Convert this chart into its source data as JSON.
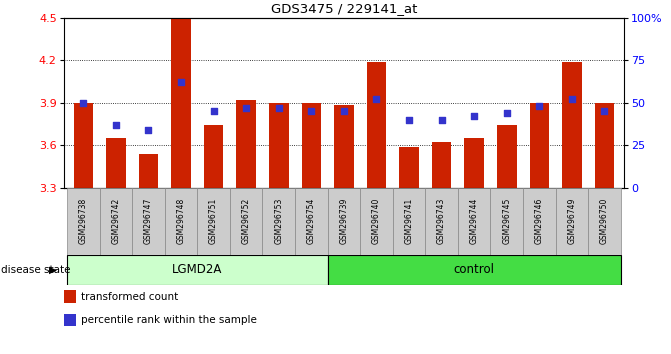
{
  "title": "GDS3475 / 229141_at",
  "samples": [
    "GSM296738",
    "GSM296742",
    "GSM296747",
    "GSM296748",
    "GSM296751",
    "GSM296752",
    "GSM296753",
    "GSM296754",
    "GSM296739",
    "GSM296740",
    "GSM296741",
    "GSM296743",
    "GSM296744",
    "GSM296745",
    "GSM296746",
    "GSM296749",
    "GSM296750"
  ],
  "bar_values": [
    3.9,
    3.65,
    3.54,
    4.49,
    3.74,
    3.92,
    3.9,
    3.9,
    3.88,
    4.19,
    3.59,
    3.62,
    3.65,
    3.74,
    3.9,
    4.19,
    3.9
  ],
  "percentile_pct": [
    50,
    37,
    34,
    62,
    45,
    47,
    47,
    45,
    45,
    52,
    40,
    40,
    42,
    44,
    48,
    52,
    45
  ],
  "y_min": 3.3,
  "y_max": 4.5,
  "y_ticks": [
    3.3,
    3.6,
    3.9,
    4.2,
    4.5
  ],
  "right_y_ticks": [
    0,
    25,
    50,
    75,
    100
  ],
  "bar_color": "#CC2200",
  "dot_color": "#3333CC",
  "bg_color_lgmd": "#CCFFCC",
  "bg_color_control": "#44DD44",
  "label_bg_color": "#CCCCCC",
  "lgmd2a_count": 8,
  "control_count": 9,
  "legend_items": [
    {
      "label": "transformed count",
      "color": "#CC2200"
    },
    {
      "label": "percentile rank within the sample",
      "color": "#3333CC"
    }
  ],
  "disease_state_label": "disease state",
  "group_labels": [
    "LGMD2A",
    "control"
  ],
  "bar_bottom": 3.3,
  "bar_width": 0.6
}
